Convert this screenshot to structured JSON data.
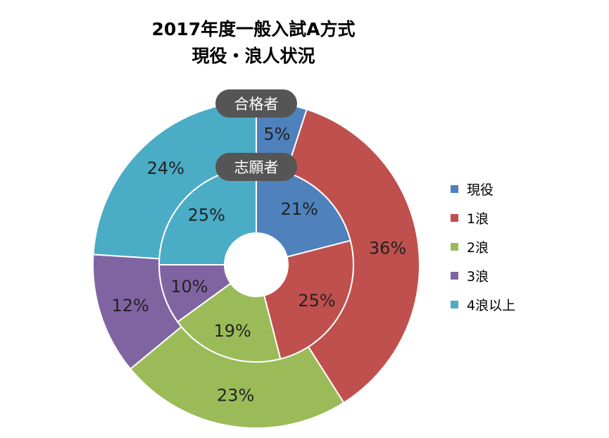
{
  "chart_data": {
    "type": "pie",
    "subtype": "doughnut",
    "title": [
      "2017年度一般入試A方式",
      "現役・浪人状況"
    ],
    "categories": [
      "現役",
      "1浪",
      "2浪",
      "3浪",
      "4浪以上"
    ],
    "colors": [
      "#4f81bd",
      "#c0504d",
      "#9bbb59",
      "#8064a2",
      "#4bacc6"
    ],
    "series": [
      {
        "name": "合格者",
        "ring": "outer",
        "values": [
          5,
          36,
          23,
          12,
          24
        ],
        "labels": [
          "5%",
          "36%",
          "23%",
          "12%",
          "24%"
        ]
      },
      {
        "name": "志願者",
        "ring": "inner",
        "values": [
          21,
          25,
          19,
          10,
          25
        ],
        "labels": [
          "21%",
          "25%",
          "19%",
          "10%",
          "25%"
        ]
      }
    ],
    "legend_position": "right"
  }
}
